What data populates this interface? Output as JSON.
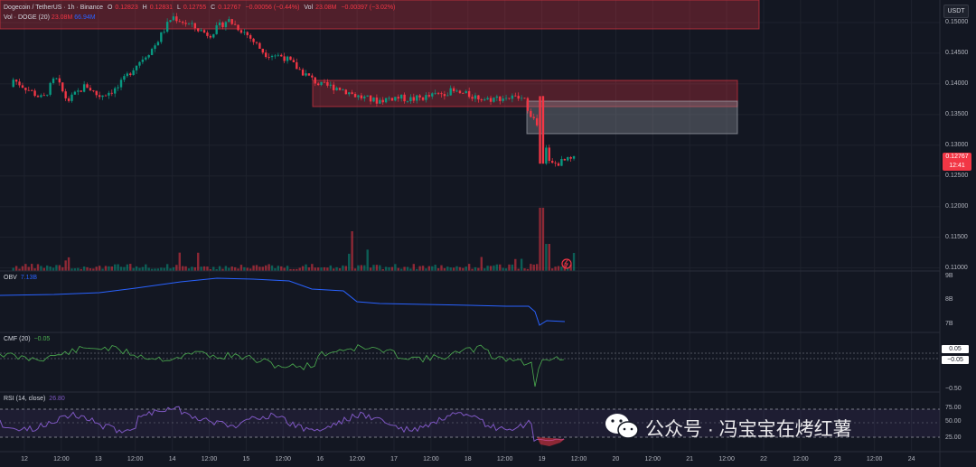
{
  "header": {
    "symbol": "Dogecoin / TetherUS · 1h · Binance",
    "o_label": "O",
    "o_value": "0.12823",
    "h_label": "H",
    "h_value": "0.12831",
    "l_label": "L",
    "l_value": "0.12755",
    "c_label": "C",
    "c_value": "0.12767",
    "change": "−0.00056 (−0.44%)",
    "vol_label": "Vol",
    "vol_value": "23.08M",
    "vol_change": "−0.00397 (−3.02%)"
  },
  "volume_legend": {
    "label": "Vol · DOGE (20)",
    "v1": "23.08M",
    "v2": "66.94M"
  },
  "currency_button": "USDT",
  "price_tag": {
    "price": "0.12767",
    "countdown": "12:41"
  },
  "price_axis": [
    "0.15000",
    "0.14500",
    "0.14000",
    "0.13500",
    "0.13000",
    "0.12500",
    "0.12000",
    "0.11500",
    "0.11000"
  ],
  "time_axis": [
    "12",
    "12:00",
    "13",
    "12:00",
    "14",
    "12:00",
    "15",
    "12:00",
    "16",
    "12:00",
    "17",
    "12:00",
    "18",
    "12:00",
    "19",
    "12:00",
    "20",
    "12:00",
    "21",
    "12:00",
    "22",
    "12:00",
    "23",
    "12:00",
    "24"
  ],
  "obv": {
    "label": "OBV",
    "value": "7.13B",
    "ticks": [
      "9B",
      "8B",
      "7B"
    ]
  },
  "cmf": {
    "label": "CMF (20)",
    "value": "−0.05",
    "ticks": [
      "0.05",
      "−0.05",
      "−0.50"
    ]
  },
  "rsi": {
    "label": "RSI (14, close)",
    "value": "26.80",
    "ticks": [
      "75.00",
      "50.00",
      "25.00"
    ]
  },
  "watermark": "公众号 · 冯宝宝在烤红薯",
  "colors": {
    "up": "#089981",
    "down": "#f23645",
    "obv": "#2962ff",
    "cmf": "#4caf50",
    "rsi": "#7e57c2",
    "zone": "#f23645"
  },
  "chart_data": {
    "type": "candlestick",
    "symbol": "DOGE/USDT",
    "interval": "1h",
    "price_range": [
      0.1095,
      0.1525
    ],
    "ohlc_close_path": [
      {
        "t": "12 00:00",
        "c": 0.1395
      },
      {
        "t": "12 06:00",
        "c": 0.1375
      },
      {
        "t": "12 10:00",
        "c": 0.141
      },
      {
        "t": "12 14:00",
        "c": 0.1372
      },
      {
        "t": "12 20:00",
        "c": 0.1398
      },
      {
        "t": "13 00:00",
        "c": 0.138
      },
      {
        "t": "13 06:00",
        "c": 0.1392
      },
      {
        "t": "13 12:00",
        "c": 0.143
      },
      {
        "t": "13 18:00",
        "c": 0.146
      },
      {
        "t": "14 00:00",
        "c": 0.151
      },
      {
        "t": "14 06:00",
        "c": 0.1495
      },
      {
        "t": "14 12:00",
        "c": 0.148
      },
      {
        "t": "14 18:00",
        "c": 0.1505
      },
      {
        "t": "15 00:00",
        "c": 0.1482
      },
      {
        "t": "15 06:00",
        "c": 0.145
      },
      {
        "t": "15 12:00",
        "c": 0.1445
      },
      {
        "t": "15 18:00",
        "c": 0.142
      },
      {
        "t": "16 00:00",
        "c": 0.1398
      },
      {
        "t": "16 06:00",
        "c": 0.1394
      },
      {
        "t": "16 12:00",
        "c": 0.138
      },
      {
        "t": "16 18:00",
        "c": 0.1372
      },
      {
        "t": "17 00:00",
        "c": 0.1378
      },
      {
        "t": "17 06:00",
        "c": 0.1375
      },
      {
        "t": "17 12:00",
        "c": 0.138
      },
      {
        "t": "17 18:00",
        "c": 0.1388
      },
      {
        "t": "18 00:00",
        "c": 0.1382
      },
      {
        "t": "18 06:00",
        "c": 0.1375
      },
      {
        "t": "18 12:00",
        "c": 0.1378
      },
      {
        "t": "18 18:00",
        "c": 0.1376
      },
      {
        "t": "19 00:00",
        "c": 0.1315
      },
      {
        "t": "19 03:00",
        "c": 0.1268
      },
      {
        "t": "19 08:00",
        "c": 0.1275
      },
      {
        "t": "19 11:00",
        "c": 0.1277
      }
    ],
    "zones": [
      {
        "name": "supply-zone-top",
        "price_from": 0.1525,
        "price_to": 0.1485
      },
      {
        "name": "supply-zone-mid",
        "price_from": 0.1403,
        "price_to": 0.1362
      },
      {
        "name": "gap-zone",
        "price_from": 0.137,
        "price_to": 0.1318
      }
    ],
    "current_price": 0.12767
  }
}
